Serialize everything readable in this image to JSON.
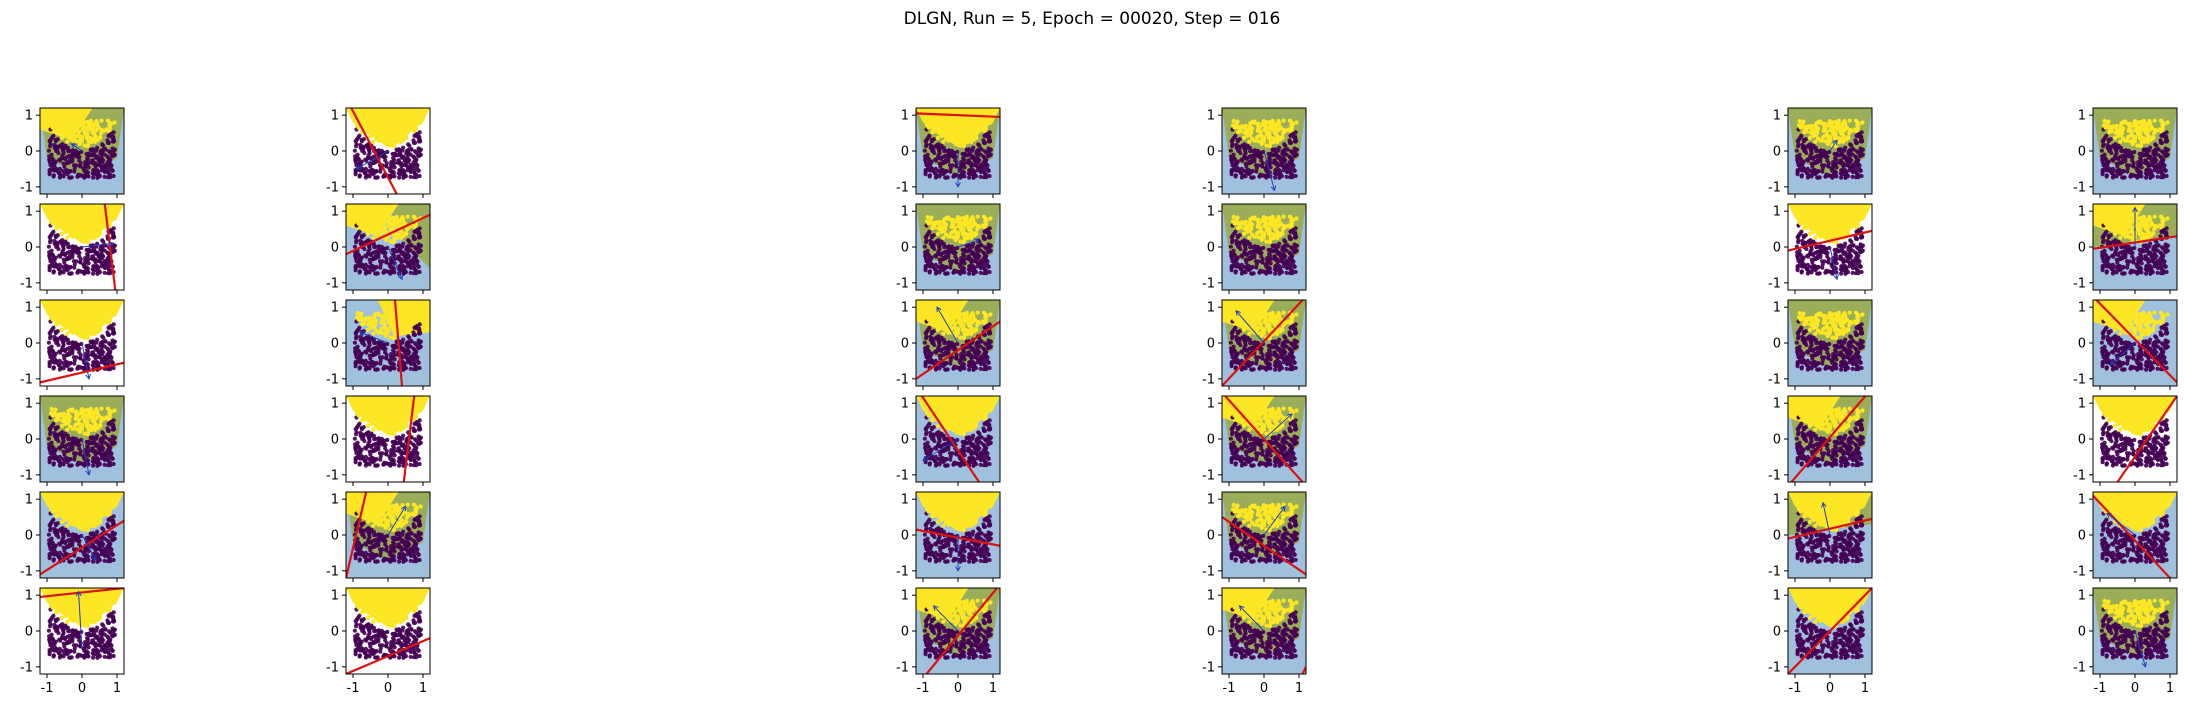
{
  "figure_title": "DLGN, Run = 5, Epoch = 00020, Step = 016",
  "colors": {
    "class0": "#440154",
    "class1": "#fde725",
    "region_light": "#8fb6d8",
    "region_green": "#9aae5a",
    "boundary": "#dd1111",
    "arrow": "#1f3fbf",
    "frame": "#000000"
  },
  "chart_data": {
    "type": "scatter",
    "title": "DLGN, Run = 5, Epoch = 00020, Step = 016",
    "rows": 6,
    "cols": 6,
    "xlim": [
      -1.2,
      1.2
    ],
    "ylim": [
      -1.2,
      1.2
    ],
    "xticks": [
      "-1",
      "0",
      "1"
    ],
    "yticks": [
      "1",
      "0",
      "-1"
    ],
    "x_tick_values": [
      -1,
      0,
      1
    ],
    "y_tick_values": [
      1,
      0,
      -1
    ],
    "dataset": "U-shaped (moons-like) two-class data; yellow class above a parabola, purple class below, points within y in [-0.75, 0.85]",
    "panels": [
      {
        "row": 0,
        "col": 0,
        "line": [
          [
            -1.2,
            1.5
          ],
          [
            -0.2,
            1.3
          ]
        ],
        "arrow": [
          [
            0,
            0
          ],
          [
            -0.3,
            0.2
          ]
        ],
        "region": "green",
        "yellow_mask": "upper-left"
      },
      {
        "row": 0,
        "col": 1,
        "line": [
          [
            -1.05,
            1.2
          ],
          [
            0.25,
            -1.2
          ]
        ],
        "arrow": [
          [
            0,
            0
          ],
          [
            -0.9,
            -0.5
          ]
        ],
        "region": "none",
        "yellow_mask": "upper"
      },
      {
        "row": 0,
        "col": 2,
        "line": [
          [
            -1.2,
            1.05
          ],
          [
            1.2,
            0.95
          ]
        ],
        "arrow": [
          [
            0,
            0
          ],
          [
            0.0,
            -1.0
          ]
        ],
        "region": "green",
        "yellow_mask": "upper"
      },
      {
        "row": 0,
        "col": 3,
        "line": null,
        "arrow": [
          [
            0,
            0
          ],
          [
            0.3,
            -1.1
          ]
        ],
        "region": "green",
        "yellow_mask": "none"
      },
      {
        "row": 0,
        "col": 4,
        "line": null,
        "arrow": [
          [
            0,
            0
          ],
          [
            0.2,
            0.3
          ]
        ],
        "region": "green",
        "yellow_mask": "none"
      },
      {
        "row": 0,
        "col": 5,
        "line": null,
        "arrow": null,
        "region": "green",
        "yellow_mask": "none"
      },
      {
        "row": 1,
        "col": 0,
        "line": [
          [
            0.65,
            1.2
          ],
          [
            0.95,
            -1.2
          ]
        ],
        "arrow": [
          [
            0,
            0
          ],
          [
            0.9,
            0.1
          ]
        ],
        "region": "none",
        "yellow_mask": "upper"
      },
      {
        "row": 1,
        "col": 1,
        "line": [
          [
            -1.2,
            -0.2
          ],
          [
            1.2,
            0.9
          ]
        ],
        "arrow": [
          [
            0,
            0
          ],
          [
            0.4,
            -0.9
          ]
        ],
        "region": "green-right",
        "yellow_mask": "upper-left"
      },
      {
        "row": 1,
        "col": 2,
        "line": null,
        "arrow": [
          [
            0,
            0
          ],
          [
            0.6,
            0.2
          ]
        ],
        "region": "green",
        "yellow_mask": "none"
      },
      {
        "row": 1,
        "col": 3,
        "line": null,
        "arrow": null,
        "region": "green",
        "yellow_mask": "none"
      },
      {
        "row": 1,
        "col": 4,
        "line": [
          [
            -1.2,
            -0.1
          ],
          [
            1.2,
            0.45
          ]
        ],
        "arrow": [
          [
            0,
            0
          ],
          [
            0.2,
            -0.9
          ]
        ],
        "region": "none",
        "yellow_mask": "upper"
      },
      {
        "row": 1,
        "col": 5,
        "line": [
          [
            -1.2,
            -0.05
          ],
          [
            1.2,
            0.3
          ]
        ],
        "arrow": [
          [
            0,
            0
          ],
          [
            0.0,
            1.1
          ]
        ],
        "region": "green-top",
        "yellow_mask": "upper-left"
      },
      {
        "row": 2,
        "col": 0,
        "line": [
          [
            -1.2,
            -1.1
          ],
          [
            1.2,
            -0.55
          ]
        ],
        "arrow": [
          [
            0,
            0
          ],
          [
            0.2,
            -1.0
          ]
        ],
        "region": "none",
        "yellow_mask": "upper"
      },
      {
        "row": 2,
        "col": 1,
        "line": [
          [
            0.2,
            1.2
          ],
          [
            0.4,
            -1.2
          ]
        ],
        "arrow": [
          [
            0,
            0
          ],
          [
            -0.8,
            0.3
          ]
        ],
        "region": "light-wedge",
        "yellow_mask": "upper-right"
      },
      {
        "row": 2,
        "col": 2,
        "line": [
          [
            -1.2,
            -1.0
          ],
          [
            1.2,
            0.6
          ]
        ],
        "arrow": [
          [
            0,
            0
          ],
          [
            -0.6,
            1.0
          ]
        ],
        "region": "green",
        "yellow_mask": "upper-left"
      },
      {
        "row": 2,
        "col": 3,
        "line": [
          [
            -1.2,
            -1.2
          ],
          [
            1.2,
            1.3
          ]
        ],
        "arrow": [
          [
            0,
            0
          ],
          [
            -0.8,
            0.9
          ]
        ],
        "region": "green",
        "yellow_mask": "upper-left"
      },
      {
        "row": 2,
        "col": 4,
        "line": null,
        "arrow": null,
        "region": "green",
        "yellow_mask": "none"
      },
      {
        "row": 2,
        "col": 5,
        "line": [
          [
            -1.2,
            1.3
          ],
          [
            1.2,
            -1.1
          ]
        ],
        "arrow": [
          [
            0,
            0
          ],
          [
            -0.7,
            -0.6
          ]
        ],
        "region": "light",
        "yellow_mask": "upper-left"
      },
      {
        "row": 3,
        "col": 0,
        "line": null,
        "arrow": [
          [
            0,
            0
          ],
          [
            0.2,
            -1.0
          ]
        ],
        "region": "green",
        "yellow_mask": "none"
      },
      {
        "row": 3,
        "col": 1,
        "line": [
          [
            0.75,
            1.2
          ],
          [
            0.45,
            -1.2
          ]
        ],
        "arrow": null,
        "region": "none",
        "yellow_mask": "upper"
      },
      {
        "row": 3,
        "col": 2,
        "line": [
          [
            -1.1,
            1.3
          ],
          [
            0.6,
            -1.2
          ]
        ],
        "arrow": [
          [
            0,
            0
          ],
          [
            -1.0,
            -0.6
          ]
        ],
        "region": "light",
        "yellow_mask": "upper"
      },
      {
        "row": 3,
        "col": 3,
        "line": [
          [
            -1.2,
            1.3
          ],
          [
            1.1,
            -1.2
          ]
        ],
        "arrow": [
          [
            0,
            0
          ],
          [
            0.8,
            0.7
          ]
        ],
        "region": "green",
        "yellow_mask": "upper-left"
      },
      {
        "row": 3,
        "col": 4,
        "line": [
          [
            -1.1,
            -1.2
          ],
          [
            1.1,
            1.3
          ]
        ],
        "arrow": null,
        "region": "green",
        "yellow_mask": "upper-left"
      },
      {
        "row": 3,
        "col": 5,
        "line": [
          [
            -0.5,
            -1.2
          ],
          [
            1.2,
            1.2
          ]
        ],
        "arrow": null,
        "region": "none",
        "yellow_mask": "upper"
      },
      {
        "row": 4,
        "col": 0,
        "line": [
          [
            -1.2,
            -1.1
          ],
          [
            1.2,
            0.4
          ]
        ],
        "arrow": [
          [
            0,
            0
          ],
          [
            0.4,
            -0.7
          ]
        ],
        "region": "light",
        "yellow_mask": "upper"
      },
      {
        "row": 4,
        "col": 1,
        "line": [
          [
            -1.2,
            -1.2
          ],
          [
            -0.6,
            1.3
          ]
        ],
        "arrow": [
          [
            0,
            0
          ],
          [
            0.5,
            0.8
          ]
        ],
        "region": "green",
        "yellow_mask": "upper-left"
      },
      {
        "row": 4,
        "col": 2,
        "line": [
          [
            -1.2,
            0.15
          ],
          [
            1.2,
            -0.3
          ]
        ],
        "arrow": [
          [
            0,
            0
          ],
          [
            0.0,
            -1.0
          ]
        ],
        "region": "light",
        "yellow_mask": "upper"
      },
      {
        "row": 4,
        "col": 3,
        "line": [
          [
            -1.2,
            0.5
          ],
          [
            1.2,
            -1.1
          ]
        ],
        "arrow": [
          [
            0,
            0
          ],
          [
            0.6,
            0.8
          ]
        ],
        "region": "green",
        "yellow_mask": "none"
      },
      {
        "row": 4,
        "col": 4,
        "line": [
          [
            -1.2,
            -0.1
          ],
          [
            1.2,
            0.45
          ]
        ],
        "arrow": [
          [
            0,
            0
          ],
          [
            -0.2,
            0.9
          ]
        ],
        "region": "green-top",
        "yellow_mask": "upper"
      },
      {
        "row": 4,
        "col": 5,
        "line": [
          [
            -1.2,
            1.1
          ],
          [
            1.0,
            -1.2
          ]
        ],
        "arrow": [
          [
            0,
            0
          ],
          [
            -0.8,
            0.6
          ]
        ],
        "region": "light",
        "yellow_mask": "upper"
      },
      {
        "row": 5,
        "col": 0,
        "line": [
          [
            -1.2,
            0.95
          ],
          [
            1.2,
            1.2
          ]
        ],
        "arrow": [
          [
            0,
            -0.5
          ],
          [
            -0.1,
            1.1
          ]
        ],
        "region": "none",
        "yellow_mask": "upper"
      },
      {
        "row": 5,
        "col": 1,
        "line": [
          [
            -1.2,
            -1.2
          ],
          [
            1.2,
            -0.2
          ]
        ],
        "arrow": null,
        "region": "none",
        "yellow_mask": "upper"
      },
      {
        "row": 5,
        "col": 2,
        "line": [
          [
            -0.9,
            -1.2
          ],
          [
            1.2,
            1.3
          ]
        ],
        "arrow": [
          [
            0,
            0
          ],
          [
            -0.7,
            0.7
          ]
        ],
        "region": "green",
        "yellow_mask": "upper-left"
      },
      {
        "row": 5,
        "col": 3,
        "line": [
          [
            1.1,
            -1.2
          ],
          [
            1.2,
            -1.0
          ]
        ],
        "arrow": [
          [
            0,
            0
          ],
          [
            -0.7,
            0.7
          ]
        ],
        "region": "green",
        "yellow_mask": "upper-left"
      },
      {
        "row": 5,
        "col": 4,
        "line": [
          [
            -1.2,
            -1.2
          ],
          [
            1.2,
            1.2
          ]
        ],
        "arrow": null,
        "region": "light",
        "yellow_mask": "upper"
      },
      {
        "row": 5,
        "col": 5,
        "line": null,
        "arrow": [
          [
            0,
            0
          ],
          [
            0.3,
            -1.0
          ]
        ],
        "region": "green",
        "yellow_mask": "none"
      }
    ]
  }
}
